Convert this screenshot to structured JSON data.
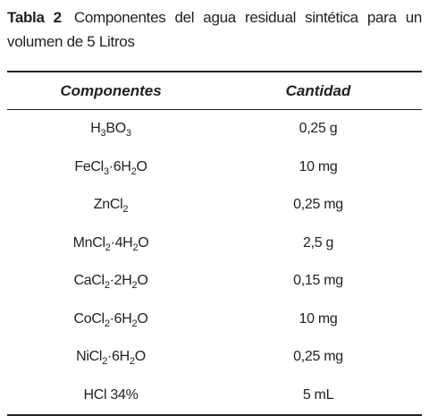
{
  "title": {
    "label": "Tabla 2",
    "text": "Componentes del agua residual sintética para un volumen de 5 Litros"
  },
  "table": {
    "headers": [
      "Componentes",
      "Cantidad"
    ],
    "rows": [
      [
        [
          "H",
          {
            "sub": "3"
          },
          "BO",
          {
            "sub": "3"
          }
        ],
        "0,25 g"
      ],
      [
        [
          "FeCl",
          {
            "sub": "3"
          },
          "·6H",
          {
            "sub": "2"
          },
          "O"
        ],
        "10 mg"
      ],
      [
        [
          "ZnCl",
          {
            "sub": "2"
          }
        ],
        "0,25 mg"
      ],
      [
        [
          "MnCl",
          {
            "sub": "2"
          },
          "·4H",
          {
            "sub": "2"
          },
          "O"
        ],
        "2,5 g"
      ],
      [
        [
          "CaCl",
          {
            "sub": "2"
          },
          "·2H",
          {
            "sub": "2"
          },
          "O"
        ],
        "0,15 mg"
      ],
      [
        [
          "CoCl",
          {
            "sub": "2"
          },
          "·6H",
          {
            "sub": "2"
          },
          "O"
        ],
        "10 mg"
      ],
      [
        [
          "NiCl",
          {
            "sub": "2"
          },
          "·6H",
          {
            "sub": "2"
          },
          "O"
        ],
        "0,25 mg"
      ],
      [
        [
          "HCl 34%"
        ],
        "5 mL"
      ]
    ]
  }
}
